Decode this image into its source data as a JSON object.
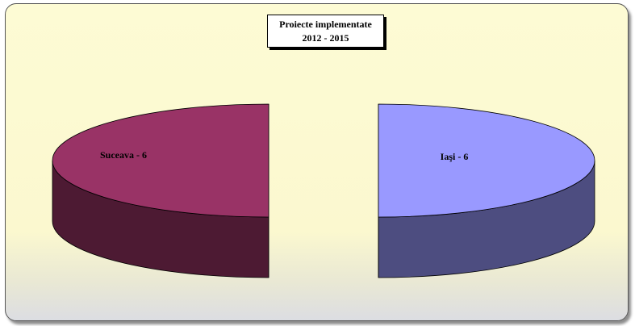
{
  "chart_data": {
    "type": "pie",
    "title_lines": [
      "Proiecte implementate",
      "2012 -  2015"
    ],
    "slices": [
      {
        "label": "Suceava - 6",
        "value": 6,
        "top_color": "#993366",
        "side_color": "#4d1a33"
      },
      {
        "label": "Iaşi - 6",
        "value": 6,
        "top_color": "#9999ff",
        "side_color": "#4d4d80"
      }
    ],
    "style": "3d-exploded",
    "legend": "none",
    "background_color": "#fbf8cf"
  }
}
